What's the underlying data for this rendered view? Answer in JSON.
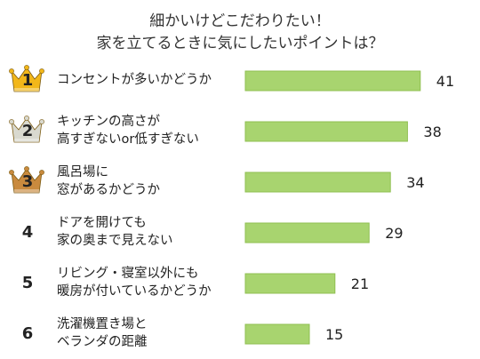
{
  "title_line1": "細かいけどこだわりたい！",
  "title_line2": "家を立てるときに気にしたいポイントは？",
  "colors": {
    "bar_fill": "#a8d46f",
    "bar_stroke": "#8fbf50",
    "gold": "#f2b71a",
    "silver": "#d9d9cf",
    "bronze": "#c98a3e"
  },
  "chart_data": {
    "type": "bar",
    "orientation": "horizontal",
    "title": "細かいけどこだわりたい！ 家を立てるときに気にしたいポイントは？",
    "xlabel": "",
    "ylabel": "",
    "xlim": [
      0,
      50
    ],
    "grid": false,
    "legend": "none",
    "categories": [
      "コンセントが多いかどうか",
      "キッチンの高さが高すぎないor低すぎない",
      "風呂場に窓があるかどうか",
      "ドアを開けても家の奥まで見えない",
      "リビング・寝室以外にも暖房が付いているかどうか",
      "洗濯機置き場とベランダの距離"
    ],
    "values": [
      41,
      38,
      34,
      29,
      21,
      15
    ]
  },
  "rows": [
    {
      "rank": "1",
      "line1": "コンセントが多いかどうか",
      "line2": "",
      "medal": "gold"
    },
    {
      "rank": "2",
      "line1": "キッチンの高さが",
      "line2": "高すぎないor低すぎない",
      "medal": "silver"
    },
    {
      "rank": "3",
      "line1": "風呂場に",
      "line2": "窓があるかどうか",
      "medal": "bronze"
    },
    {
      "rank": "4",
      "line1": "ドアを開けても",
      "line2": "家の奥まで見えない",
      "medal": ""
    },
    {
      "rank": "5",
      "line1": "リビング・寝室以外にも",
      "line2": "暖房が付いているかどうか",
      "medal": ""
    },
    {
      "rank": "6",
      "line1": "洗濯機置き場と",
      "line2": "ベランダの距離",
      "medal": ""
    }
  ]
}
